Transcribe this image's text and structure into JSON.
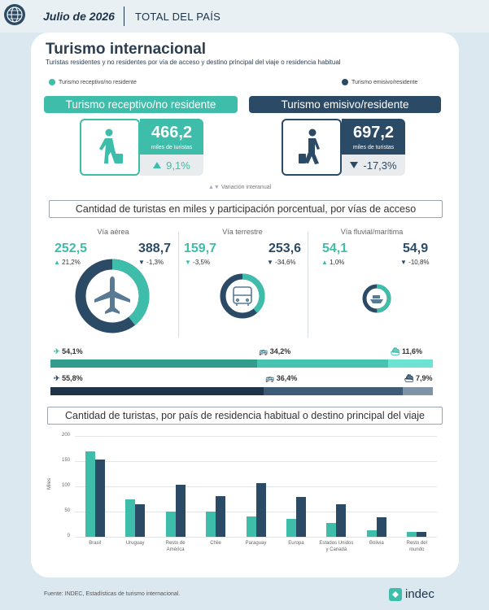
{
  "header": {
    "date": "Julio de 2026",
    "region": "TOTAL DEL PAÍS"
  },
  "title": "Turismo internacional",
  "subtitle": "Turistas residentes y no residentes por vía de acceso y destino principal del viaje o residencia habitual",
  "legend": {
    "receptivo": "Turismo receptivo/no residente",
    "emisivo": "Turismo emisivo/residente"
  },
  "colors": {
    "receptivo": "#3dbdaa",
    "emisivo": "#2b4a66",
    "receptivo_light": "#5dd3c3",
    "emisivo_light": "#8ea1b2"
  },
  "receptivo": {
    "banner": "Turismo receptivo/no residente",
    "value": "466,2",
    "unit": "miles de turistas",
    "variation": "9,1%",
    "direction": "up"
  },
  "emisivo": {
    "banner": "Turismo emisivo/residente",
    "value": "697,2",
    "unit": "miles de turistas",
    "variation": "-17,3%",
    "direction": "down"
  },
  "variation_label": "Variación interanual",
  "section1_title": "Cantidad de turistas en miles y participación porcentual, por vías de acceso",
  "vias": [
    {
      "name": "Vía aérea",
      "receptivo": "252,5",
      "receptivo_var": "21,2%",
      "emisivo": "388,7",
      "emisivo_var": "-1,3%",
      "share_receptivo": 0.394
    },
    {
      "name": "Vía terrestre",
      "receptivo": "159,7",
      "receptivo_var": "-3,5%",
      "emisivo": "253,6",
      "emisivo_var": "-34,6%",
      "share_receptivo": 0.386
    },
    {
      "name": "Vía fluvial/marítima",
      "receptivo": "54,1",
      "receptivo_var": "1,0%",
      "emisivo": "54,9",
      "emisivo_var": "-10,8%",
      "share_receptivo": 0.496
    }
  ],
  "shares": {
    "receptivo": [
      {
        "label": "54,1%",
        "value": 54.1
      },
      {
        "label": "34,2%",
        "value": 34.2
      },
      {
        "label": "11,6%",
        "value": 11.6
      }
    ],
    "emisivo": [
      {
        "label": "55,8%",
        "value": 55.8
      },
      {
        "label": "36,4%",
        "value": 36.4
      },
      {
        "label": "7,9%",
        "value": 7.9
      }
    ]
  },
  "section2_title": "Cantidad de turistas, por país de residencia habitual o destino principal del viaje",
  "chart_data": {
    "type": "bar",
    "categories": [
      "Brasil",
      "Uruguay",
      "Resto de América",
      "Chile",
      "Paraguay",
      "Europa",
      "Estados Unidos y Canadá",
      "Bolivia",
      "Resto del mundo"
    ],
    "series": [
      {
        "name": "Turismo receptivo/no residente",
        "values": [
          169,
          75,
          50,
          50,
          40,
          35,
          27,
          13,
          10
        ]
      },
      {
        "name": "Turismo emisivo/residente",
        "values": [
          154,
          64,
          104,
          81,
          106,
          79,
          65,
          38,
          9
        ]
      }
    ],
    "ylabel": "Miles",
    "ylim": [
      0,
      200
    ],
    "yticks": [
      0,
      50,
      100,
      150,
      200
    ],
    "category_labels": [
      [
        "Brasil"
      ],
      [
        "Uruguay"
      ],
      [
        "Resto de",
        "América"
      ],
      [
        "Chile"
      ],
      [
        "Paraguay"
      ],
      [
        "Europa"
      ],
      [
        "Estados Unidos",
        "y Canadá"
      ],
      [
        "Bolivia"
      ],
      [
        "Resto del",
        "mundo"
      ]
    ]
  },
  "source": "Fuente: INDEC, Estadísticas de turismo internacional.",
  "logo": "indec"
}
